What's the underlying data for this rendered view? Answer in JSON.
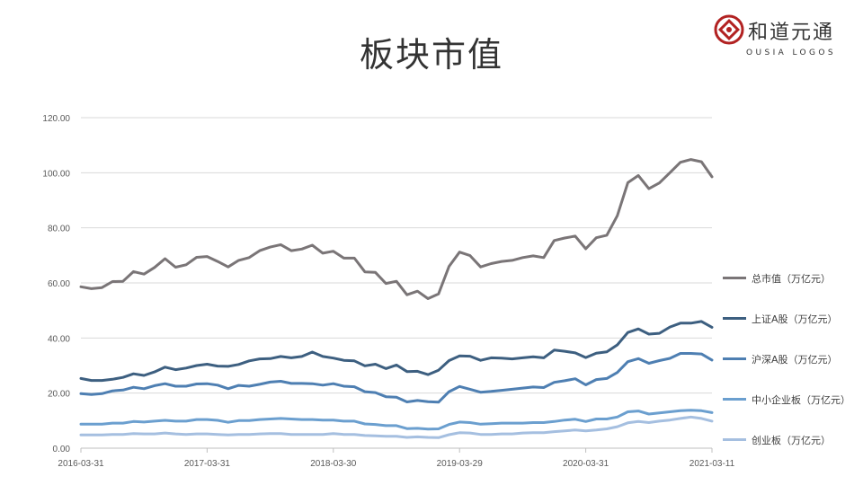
{
  "title": "板块市值",
  "logo": {
    "cn_text": "和道元通",
    "en_text": "OUSIA LOGOS",
    "accent_color": "#b22222"
  },
  "chart_data": {
    "type": "line",
    "title": "板块市值",
    "ylim": [
      0,
      120
    ],
    "yticks": [
      "0.00",
      "20.00",
      "40.00",
      "60.00",
      "80.00",
      "100.00",
      "120.00"
    ],
    "xtick_labels": [
      "2016-03-31",
      "2017-03-31",
      "2018-03-30",
      "2019-03-29",
      "2020-03-31",
      "2021-03-11"
    ],
    "xtick_index": [
      0,
      12,
      24,
      36,
      48,
      60
    ],
    "grid": true,
    "legend_position": "right",
    "series": [
      {
        "name": "总市值（万亿元）",
        "color": "#7a7577",
        "values": [
          58.6,
          57.9,
          58.3,
          60.5,
          60.6,
          64.1,
          63.2,
          65.6,
          68.8,
          65.7,
          66.6,
          69.3,
          69.6,
          67.8,
          65.8,
          68.2,
          69.2,
          71.7,
          73.0,
          73.9,
          71.7,
          72.3,
          73.7,
          70.8,
          71.5,
          69.0,
          69.0,
          64.0,
          63.8,
          59.8,
          60.6,
          55.7,
          57.0,
          54.3,
          56.0,
          66.0,
          71.2,
          69.9,
          65.8,
          67.0,
          67.8,
          68.2,
          69.2,
          69.8,
          69.2,
          75.4,
          76.3,
          77.0,
          72.4,
          76.4,
          77.3,
          84.4,
          96.4,
          99.0,
          94.2,
          96.3,
          100.0,
          103.8,
          104.8,
          104.0,
          98.5
        ]
      },
      {
        "name": "上证A股（万亿元）",
        "color": "#3d5f80",
        "values": [
          25.3,
          24.6,
          24.6,
          25.0,
          25.7,
          27.0,
          26.4,
          27.7,
          29.4,
          28.5,
          29.1,
          30.0,
          30.5,
          29.8,
          29.7,
          30.4,
          31.7,
          32.4,
          32.5,
          33.3,
          32.8,
          33.3,
          34.9,
          33.3,
          32.7,
          31.9,
          31.7,
          29.9,
          30.5,
          28.9,
          30.2,
          27.8,
          27.9,
          26.7,
          28.3,
          31.8,
          33.5,
          33.4,
          31.9,
          32.8,
          32.7,
          32.4,
          32.8,
          33.2,
          32.8,
          35.6,
          35.2,
          34.6,
          32.9,
          34.5,
          35.0,
          37.5,
          42.0,
          43.3,
          41.4,
          41.7,
          44.0,
          45.4,
          45.4,
          46.0,
          43.9
        ]
      },
      {
        "name": "沪深A股（万亿元）",
        "color": "#4e7fb2",
        "values": [
          19.8,
          19.5,
          19.8,
          20.8,
          21.1,
          22.1,
          21.6,
          22.7,
          23.4,
          22.5,
          22.5,
          23.3,
          23.4,
          22.9,
          21.6,
          22.8,
          22.5,
          23.2,
          24.0,
          24.3,
          23.5,
          23.5,
          23.4,
          22.9,
          23.4,
          22.5,
          22.3,
          20.5,
          20.2,
          18.7,
          18.5,
          16.8,
          17.3,
          16.9,
          16.7,
          20.5,
          22.4,
          21.4,
          20.3,
          20.6,
          21.0,
          21.4,
          21.8,
          22.2,
          22.0,
          23.9,
          24.5,
          25.2,
          23.0,
          24.9,
          25.3,
          27.5,
          31.4,
          32.5,
          30.8,
          31.8,
          32.6,
          34.4,
          34.4,
          34.2,
          32.0
        ]
      },
      {
        "name": "中小企业板（万亿元）",
        "color": "#6b9fcf",
        "values": [
          8.7,
          8.7,
          8.7,
          9.1,
          9.1,
          9.7,
          9.5,
          9.8,
          10.1,
          9.8,
          9.8,
          10.4,
          10.4,
          10.1,
          9.4,
          10.0,
          10.0,
          10.4,
          10.6,
          10.8,
          10.6,
          10.4,
          10.4,
          10.2,
          10.2,
          9.8,
          9.8,
          8.8,
          8.6,
          8.2,
          8.2,
          7.1,
          7.2,
          6.9,
          7.0,
          8.6,
          9.5,
          9.3,
          8.7,
          8.9,
          9.1,
          9.1,
          9.1,
          9.3,
          9.3,
          9.7,
          10.2,
          10.5,
          9.7,
          10.6,
          10.6,
          11.3,
          13.2,
          13.5,
          12.4,
          12.8,
          13.2,
          13.6,
          13.8,
          13.6,
          12.9
        ]
      },
      {
        "name": "创业板（万亿元）",
        "color": "#a5bfe0",
        "values": [
          4.8,
          4.8,
          4.8,
          5.0,
          5.0,
          5.3,
          5.2,
          5.2,
          5.5,
          5.2,
          5.0,
          5.2,
          5.2,
          5.0,
          4.8,
          5.0,
          5.0,
          5.2,
          5.3,
          5.3,
          5.0,
          5.0,
          5.0,
          5.0,
          5.3,
          5.0,
          5.0,
          4.6,
          4.5,
          4.3,
          4.3,
          3.9,
          4.1,
          3.9,
          3.8,
          4.9,
          5.6,
          5.5,
          5.0,
          5.0,
          5.2,
          5.2,
          5.5,
          5.6,
          5.6,
          6.0,
          6.3,
          6.6,
          6.3,
          6.6,
          7.0,
          7.8,
          9.2,
          9.7,
          9.3,
          9.8,
          10.2,
          10.8,
          11.3,
          10.8,
          9.8
        ]
      }
    ]
  }
}
